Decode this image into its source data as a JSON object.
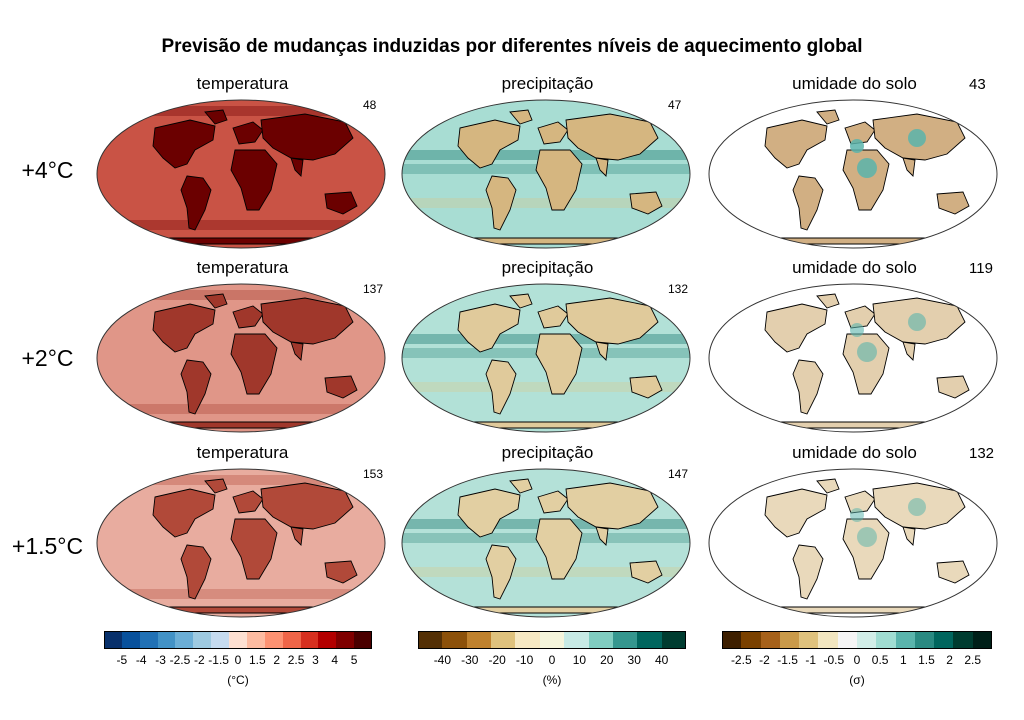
{
  "title": "Previsão de mudanças induzidas por diferentes níveis de aquecimento global",
  "rows": [
    {
      "label": "+4°C",
      "panels": [
        {
          "variable": "temperatura",
          "count": "48",
          "intensity": 1.0
        },
        {
          "variable": "precipitação",
          "count": "47",
          "intensity": 1.0
        },
        {
          "variable": "umidade do solo",
          "count": "43",
          "intensity": 1.0
        }
      ]
    },
    {
      "label": "+2°C",
      "panels": [
        {
          "variable": "temperatura",
          "count": "137",
          "intensity": 0.55
        },
        {
          "variable": "precipitação",
          "count": "132",
          "intensity": 0.6
        },
        {
          "variable": "umidade do solo",
          "count": "119",
          "intensity": 0.5
        }
      ]
    },
    {
      "label": "+1.5°C",
      "panels": [
        {
          "variable": "temperatura",
          "count": "153",
          "intensity": 0.4
        },
        {
          "variable": "precipitação",
          "count": "147",
          "intensity": 0.5
        },
        {
          "variable": "umidade do solo",
          "count": "132",
          "intensity": 0.35
        }
      ]
    }
  ],
  "colorbars": [
    {
      "name": "temperature",
      "unit": "(°C)",
      "colors": [
        "#08306b",
        "#08519c",
        "#2171b5",
        "#4292c6",
        "#6baed6",
        "#9ecae1",
        "#c6dbef",
        "#fde0d2",
        "#fcbba1",
        "#fc9272",
        "#ef6548",
        "#d7301f",
        "#b30000",
        "#7f0000",
        "#4a0000"
      ],
      "ticks": [
        "-5",
        "-4",
        "-3",
        "-2.5",
        "-2",
        "-1.5",
        "0",
        "1.5",
        "2",
        "2.5",
        "3",
        "4",
        "5"
      ]
    },
    {
      "name": "precipitation",
      "unit": "(%)",
      "colors": [
        "#543005",
        "#8c510a",
        "#bf812d",
        "#dfc27d",
        "#f6e8c3",
        "#f5f5dc",
        "#c7eae5",
        "#80cdc1",
        "#35978f",
        "#01665e",
        "#003c30"
      ],
      "ticks": [
        "-40",
        "-30",
        "-20",
        "-10",
        "0",
        "10",
        "20",
        "30",
        "40"
      ]
    },
    {
      "name": "soil-moisture",
      "unit": "(σ)",
      "colors": [
        "#3d1f00",
        "#7a4100",
        "#a6611a",
        "#c99a4a",
        "#dfc27d",
        "#f2e6c0",
        "#f5f5f5",
        "#d2eee8",
        "#a0ddd2",
        "#5ab4ac",
        "#2a8a82",
        "#01665e",
        "#003c30",
        "#001f18"
      ],
      "ticks": [
        "-2.5",
        "-2",
        "-1.5",
        "-1",
        "-0.5",
        "0",
        "0.5",
        "1",
        "1.5",
        "2",
        "2.5"
      ]
    }
  ],
  "colors": {
    "ocean_temp": "#f7d5c2",
    "land_temp": "#c0392b",
    "ocean_precip": "#a8ddd3",
    "land_precip": "#e8d6a0",
    "ocean_soil": "#ffffff",
    "land_soil": "#f2e6c0",
    "coast": "#000000"
  }
}
